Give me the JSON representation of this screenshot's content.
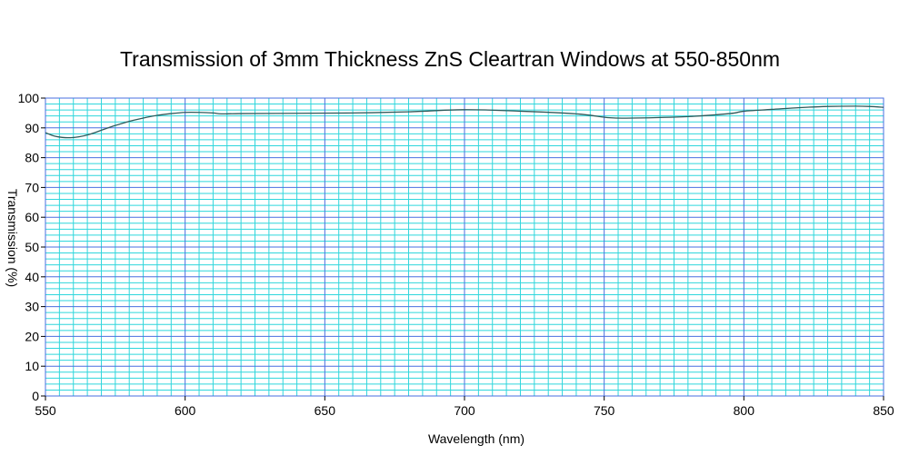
{
  "chart_data": {
    "type": "line",
    "title": "Transmission of 3mm Thickness ZnS Cleartran Windows at 550-850nm",
    "xlabel": "Wavelength (nm)",
    "ylabel": "Transmission (%)",
    "xlim": [
      550,
      850
    ],
    "ylim": [
      0,
      100
    ],
    "x_ticks": [
      550,
      600,
      650,
      700,
      750,
      800,
      850
    ],
    "y_ticks": [
      0,
      10,
      20,
      30,
      40,
      50,
      60,
      70,
      80,
      90,
      100
    ],
    "grid": true,
    "legend": "none",
    "colors": {
      "major_grid": "#4a6fe0",
      "minor_grid": "#2fd6dc",
      "line": "#2f5a5a"
    },
    "series": [
      {
        "x": [
          550,
          553,
          556,
          559,
          562,
          566,
          570,
          575,
          580,
          585,
          590,
          595,
          600,
          605,
          610,
          613,
          620,
          640,
          660,
          680,
          700,
          720,
          740,
          752,
          760,
          780,
          795,
          800,
          810,
          820,
          830,
          840,
          845,
          850
        ],
        "y": [
          88.4,
          87.3,
          86.8,
          86.7,
          87.0,
          87.9,
          89.2,
          90.8,
          92.2,
          93.3,
          94.2,
          94.8,
          95.2,
          95.2,
          95.0,
          94.7,
          94.8,
          94.9,
          95.0,
          95.4,
          96.1,
          95.6,
          94.7,
          93.4,
          93.3,
          93.8,
          94.8,
          95.6,
          96.2,
          96.8,
          97.2,
          97.3,
          97.2,
          96.9
        ]
      }
    ]
  }
}
